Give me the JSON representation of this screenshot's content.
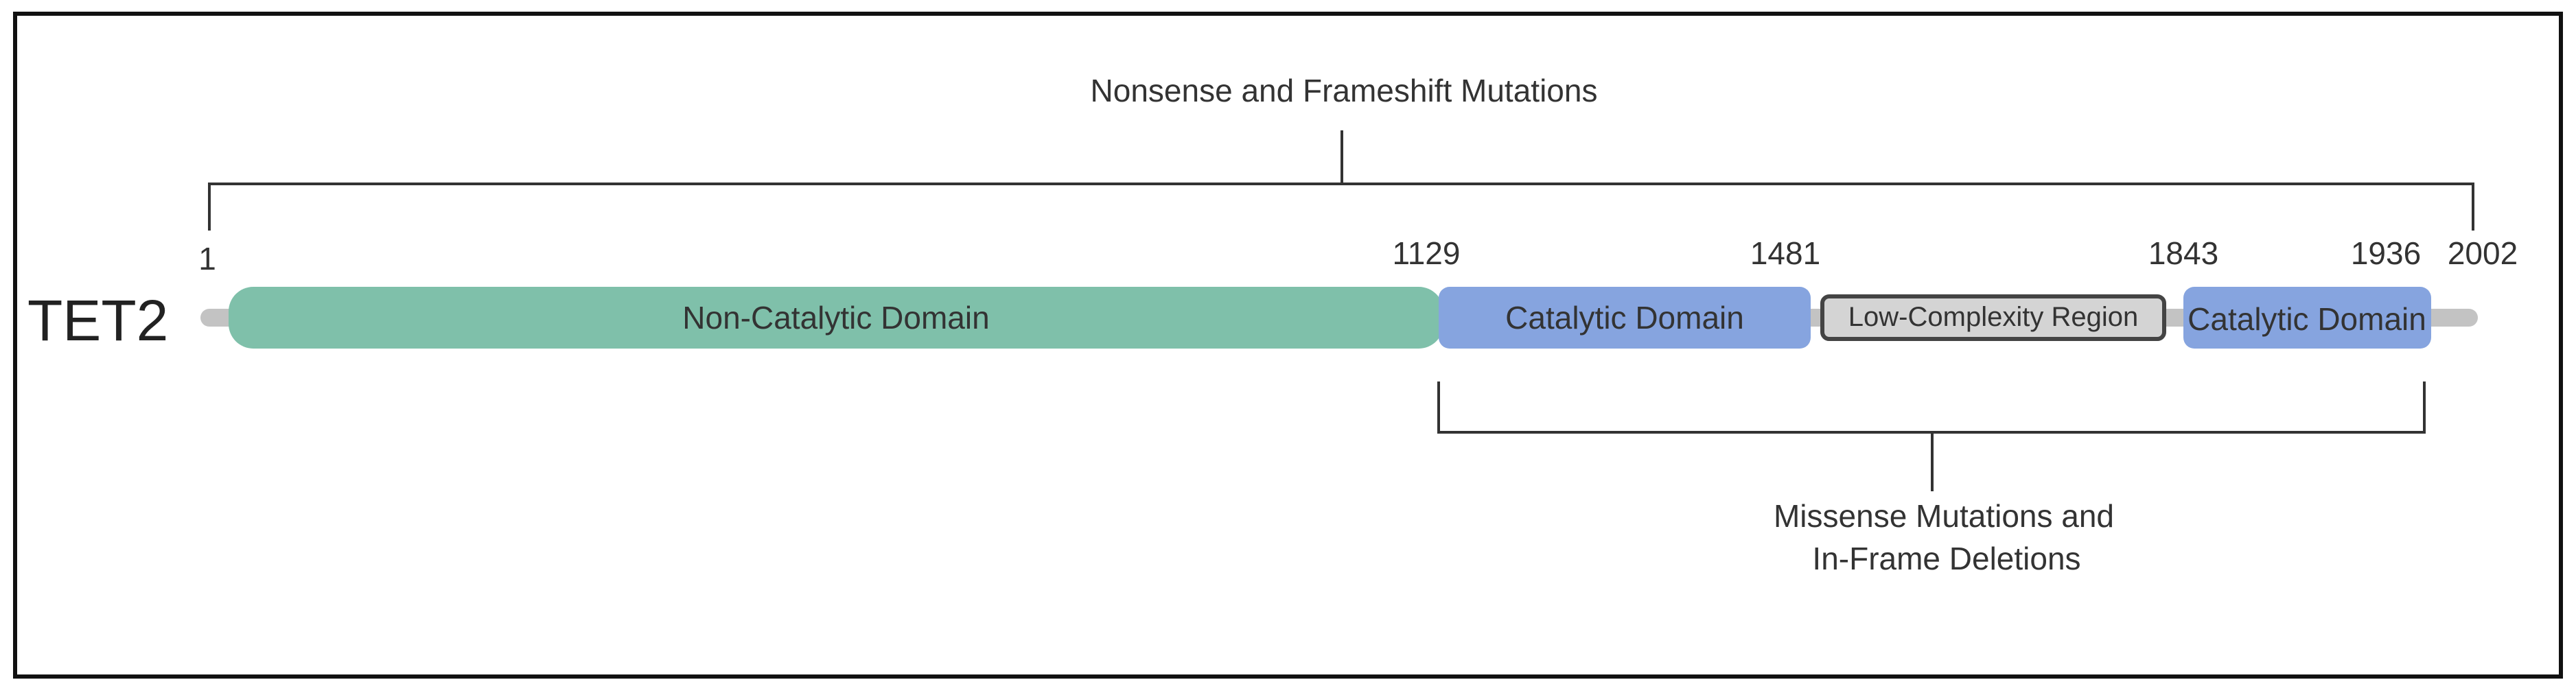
{
  "protein": {
    "name": "TET2",
    "backbone_color": "#c3c3c3"
  },
  "positions": {
    "start": "1",
    "p1129": "1129",
    "p1481": "1481",
    "p1843": "1843",
    "p1936": "1936",
    "end": "2002"
  },
  "domains": {
    "non_catalytic": {
      "label": "Non-Catalytic Domain",
      "color": "#7fc0aa"
    },
    "catalytic_1": {
      "label": "Catalytic Domain",
      "color": "#86a4df"
    },
    "low_complexity": {
      "label": "Low-Complexity Region",
      "color": "#d4d4d4",
      "border": "#444444"
    },
    "catalytic_2": {
      "label": "Catalytic Domain",
      "color": "#86a4df"
    }
  },
  "annotations": {
    "nonsense": "Nonsense and Frameshift Mutations",
    "missense_line1": "Missense Mutations and",
    "missense_line2": "In-Frame Deletions"
  }
}
